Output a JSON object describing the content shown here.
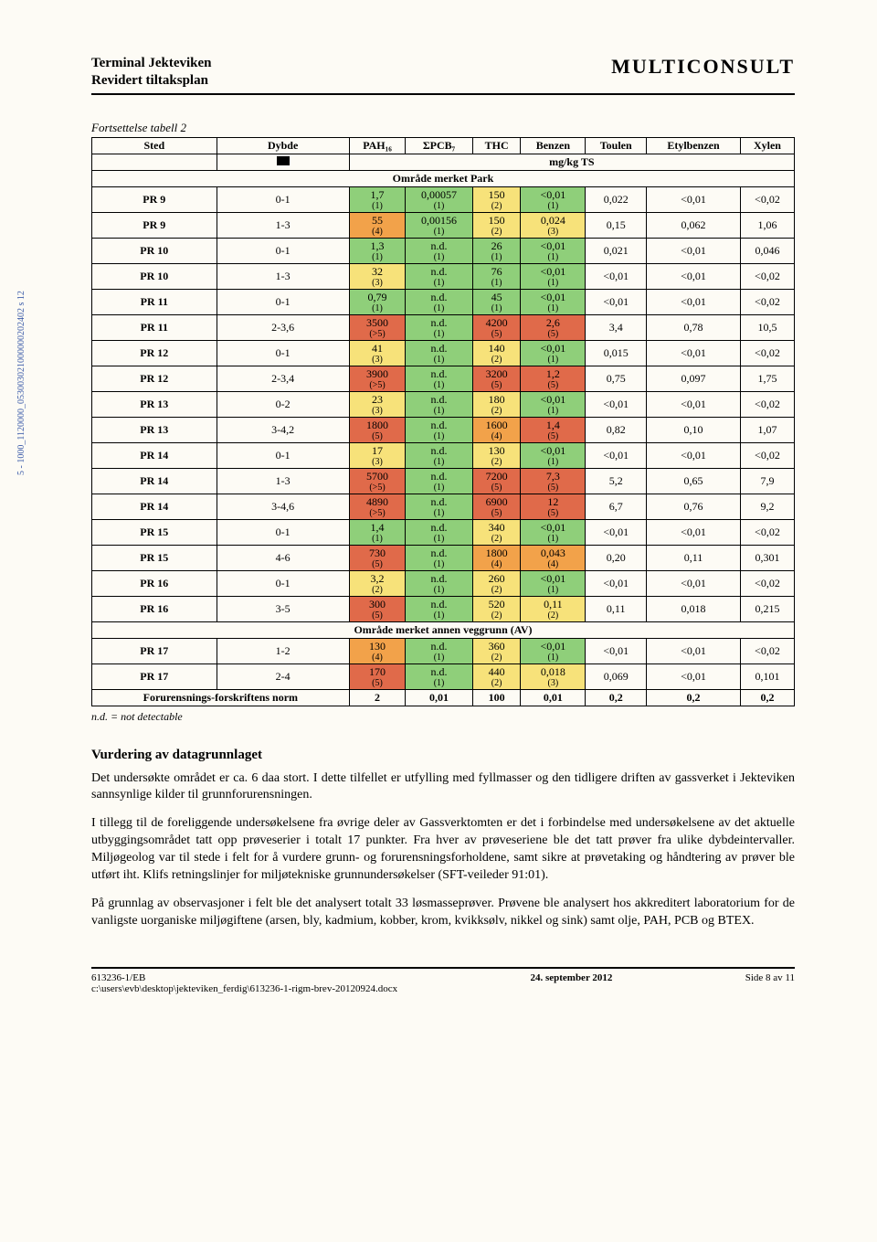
{
  "header": {
    "title_line1": "Terminal Jekteviken",
    "title_line2": "Revidert tiltaksplan",
    "company": "MULTICONSULT"
  },
  "table": {
    "caption": "Fortsettelse tabell 2",
    "columns": [
      "Sted",
      "Dybde",
      "PAH₁₆",
      "ΣPCB₇",
      "THC",
      "Benzen",
      "Toulen",
      "Etylbenzen",
      "Xylen"
    ],
    "unit_row_label": "mg/kg TS",
    "sections": [
      {
        "title": "Område merket Park",
        "rows": [
          {
            "sted": "PR 9",
            "dybde": "0-1",
            "cells": [
              {
                "v": "1,7",
                "s": "(1)",
                "c": "c-green"
              },
              {
                "v": "0,00057",
                "s": "(1)",
                "c": "c-green"
              },
              {
                "v": "150",
                "s": "(2)",
                "c": "c-yellow"
              },
              {
                "v": "<0,01",
                "s": "(1)",
                "c": "c-green"
              },
              {
                "v": "0,022",
                "s": "",
                "c": ""
              },
              {
                "v": "<0,01",
                "s": "",
                "c": ""
              },
              {
                "v": "<0,02",
                "s": "",
                "c": ""
              }
            ]
          },
          {
            "sted": "PR 9",
            "dybde": "1-3",
            "cells": [
              {
                "v": "55",
                "s": "(4)",
                "c": "c-orange"
              },
              {
                "v": "0,00156",
                "s": "(1)",
                "c": "c-green"
              },
              {
                "v": "150",
                "s": "(2)",
                "c": "c-yellow"
              },
              {
                "v": "0,024",
                "s": "(3)",
                "c": "c-yellow"
              },
              {
                "v": "0,15",
                "s": "",
                "c": ""
              },
              {
                "v": "0,062",
                "s": "",
                "c": ""
              },
              {
                "v": "1,06",
                "s": "",
                "c": ""
              }
            ]
          },
          {
            "sted": "PR 10",
            "dybde": "0-1",
            "cells": [
              {
                "v": "1,3",
                "s": "(1)",
                "c": "c-green"
              },
              {
                "v": "n.d.",
                "s": "(1)",
                "c": "c-green"
              },
              {
                "v": "26",
                "s": "(1)",
                "c": "c-green"
              },
              {
                "v": "<0,01",
                "s": "(1)",
                "c": "c-green"
              },
              {
                "v": "0,021",
                "s": "",
                "c": ""
              },
              {
                "v": "<0,01",
                "s": "",
                "c": ""
              },
              {
                "v": "0,046",
                "s": "",
                "c": ""
              }
            ]
          },
          {
            "sted": "PR 10",
            "dybde": "1-3",
            "cells": [
              {
                "v": "32",
                "s": "(3)",
                "c": "c-yellow"
              },
              {
                "v": "n.d.",
                "s": "(1)",
                "c": "c-green"
              },
              {
                "v": "76",
                "s": "(1)",
                "c": "c-green"
              },
              {
                "v": "<0,01",
                "s": "(1)",
                "c": "c-green"
              },
              {
                "v": "<0,01",
                "s": "",
                "c": ""
              },
              {
                "v": "<0,01",
                "s": "",
                "c": ""
              },
              {
                "v": "<0,02",
                "s": "",
                "c": ""
              }
            ]
          },
          {
            "sted": "PR 11",
            "dybde": "0-1",
            "cells": [
              {
                "v": "0,79",
                "s": "(1)",
                "c": "c-green"
              },
              {
                "v": "n.d.",
                "s": "(1)",
                "c": "c-green"
              },
              {
                "v": "45",
                "s": "(1)",
                "c": "c-green"
              },
              {
                "v": "<0,01",
                "s": "(1)",
                "c": "c-green"
              },
              {
                "v": "<0,01",
                "s": "",
                "c": ""
              },
              {
                "v": "<0,01",
                "s": "",
                "c": ""
              },
              {
                "v": "<0,02",
                "s": "",
                "c": ""
              }
            ]
          },
          {
            "sted": "PR 11",
            "dybde": "2-3,6",
            "cells": [
              {
                "v": "3500",
                "s": "(>5)",
                "c": "c-red"
              },
              {
                "v": "n.d.",
                "s": "(1)",
                "c": "c-green"
              },
              {
                "v": "4200",
                "s": "(5)",
                "c": "c-red"
              },
              {
                "v": "2,6",
                "s": "(5)",
                "c": "c-red"
              },
              {
                "v": "3,4",
                "s": "",
                "c": ""
              },
              {
                "v": "0,78",
                "s": "",
                "c": ""
              },
              {
                "v": "10,5",
                "s": "",
                "c": ""
              }
            ]
          },
          {
            "sted": "PR 12",
            "dybde": "0-1",
            "cells": [
              {
                "v": "41",
                "s": "(3)",
                "c": "c-yellow"
              },
              {
                "v": "n.d.",
                "s": "(1)",
                "c": "c-green"
              },
              {
                "v": "140",
                "s": "(2)",
                "c": "c-yellow"
              },
              {
                "v": "<0,01",
                "s": "(1)",
                "c": "c-green"
              },
              {
                "v": "0,015",
                "s": "",
                "c": ""
              },
              {
                "v": "<0,01",
                "s": "",
                "c": ""
              },
              {
                "v": "<0,02",
                "s": "",
                "c": ""
              }
            ]
          },
          {
            "sted": "PR 12",
            "dybde": "2-3,4",
            "cells": [
              {
                "v": "3900",
                "s": "(>5)",
                "c": "c-red"
              },
              {
                "v": "n.d.",
                "s": "(1)",
                "c": "c-green"
              },
              {
                "v": "3200",
                "s": "(5)",
                "c": "c-red"
              },
              {
                "v": "1,2",
                "s": "(5)",
                "c": "c-red"
              },
              {
                "v": "0,75",
                "s": "",
                "c": ""
              },
              {
                "v": "0,097",
                "s": "",
                "c": ""
              },
              {
                "v": "1,75",
                "s": "",
                "c": ""
              }
            ]
          },
          {
            "sted": "PR 13",
            "dybde": "0-2",
            "cells": [
              {
                "v": "23",
                "s": "(3)",
                "c": "c-yellow"
              },
              {
                "v": "n.d.",
                "s": "(1)",
                "c": "c-green"
              },
              {
                "v": "180",
                "s": "(2)",
                "c": "c-yellow"
              },
              {
                "v": "<0,01",
                "s": "(1)",
                "c": "c-green"
              },
              {
                "v": "<0,01",
                "s": "",
                "c": ""
              },
              {
                "v": "<0,01",
                "s": "",
                "c": ""
              },
              {
                "v": "<0,02",
                "s": "",
                "c": ""
              }
            ]
          },
          {
            "sted": "PR 13",
            "dybde": "3-4,2",
            "cells": [
              {
                "v": "1800",
                "s": "(5)",
                "c": "c-red"
              },
              {
                "v": "n.d.",
                "s": "(1)",
                "c": "c-green"
              },
              {
                "v": "1600",
                "s": "(4)",
                "c": "c-orange"
              },
              {
                "v": "1,4",
                "s": "(5)",
                "c": "c-red"
              },
              {
                "v": "0,82",
                "s": "",
                "c": ""
              },
              {
                "v": "0,10",
                "s": "",
                "c": ""
              },
              {
                "v": "1,07",
                "s": "",
                "c": ""
              }
            ]
          },
          {
            "sted": "PR 14",
            "dybde": "0-1",
            "cells": [
              {
                "v": "17",
                "s": "(3)",
                "c": "c-yellow"
              },
              {
                "v": "n.d.",
                "s": "(1)",
                "c": "c-green"
              },
              {
                "v": "130",
                "s": "(2)",
                "c": "c-yellow"
              },
              {
                "v": "<0,01",
                "s": "(1)",
                "c": "c-green"
              },
              {
                "v": "<0,01",
                "s": "",
                "c": ""
              },
              {
                "v": "<0,01",
                "s": "",
                "c": ""
              },
              {
                "v": "<0,02",
                "s": "",
                "c": ""
              }
            ]
          },
          {
            "sted": "PR 14",
            "dybde": "1-3",
            "cells": [
              {
                "v": "5700",
                "s": "(>5)",
                "c": "c-red"
              },
              {
                "v": "n.d.",
                "s": "(1)",
                "c": "c-green"
              },
              {
                "v": "7200",
                "s": "(5)",
                "c": "c-red"
              },
              {
                "v": "7,3",
                "s": "(5)",
                "c": "c-red"
              },
              {
                "v": "5,2",
                "s": "",
                "c": ""
              },
              {
                "v": "0,65",
                "s": "",
                "c": ""
              },
              {
                "v": "7,9",
                "s": "",
                "c": ""
              }
            ]
          },
          {
            "sted": "PR 14",
            "dybde": "3-4,6",
            "cells": [
              {
                "v": "4890",
                "s": "(>5)",
                "c": "c-red"
              },
              {
                "v": "n.d.",
                "s": "(1)",
                "c": "c-green"
              },
              {
                "v": "6900",
                "s": "(5)",
                "c": "c-red"
              },
              {
                "v": "12",
                "s": "(5)",
                "c": "c-red"
              },
              {
                "v": "6,7",
                "s": "",
                "c": ""
              },
              {
                "v": "0,76",
                "s": "",
                "c": ""
              },
              {
                "v": "9,2",
                "s": "",
                "c": ""
              }
            ]
          },
          {
            "sted": "PR 15",
            "dybde": "0-1",
            "cells": [
              {
                "v": "1,4",
                "s": "(1)",
                "c": "c-green"
              },
              {
                "v": "n.d.",
                "s": "(1)",
                "c": "c-green"
              },
              {
                "v": "340",
                "s": "(2)",
                "c": "c-yellow"
              },
              {
                "v": "<0,01",
                "s": "(1)",
                "c": "c-green"
              },
              {
                "v": "<0,01",
                "s": "",
                "c": ""
              },
              {
                "v": "<0,01",
                "s": "",
                "c": ""
              },
              {
                "v": "<0,02",
                "s": "",
                "c": ""
              }
            ]
          },
          {
            "sted": "PR 15",
            "dybde": "4-6",
            "cells": [
              {
                "v": "730",
                "s": "(5)",
                "c": "c-red"
              },
              {
                "v": "n.d.",
                "s": "(1)",
                "c": "c-green"
              },
              {
                "v": "1800",
                "s": "(4)",
                "c": "c-orange"
              },
              {
                "v": "0,043",
                "s": "(4)",
                "c": "c-orange"
              },
              {
                "v": "0,20",
                "s": "",
                "c": ""
              },
              {
                "v": "0,11",
                "s": "",
                "c": ""
              },
              {
                "v": "0,301",
                "s": "",
                "c": ""
              }
            ]
          },
          {
            "sted": "PR 16",
            "dybde": "0-1",
            "cells": [
              {
                "v": "3,2",
                "s": "(2)",
                "c": "c-yellow"
              },
              {
                "v": "n.d.",
                "s": "(1)",
                "c": "c-green"
              },
              {
                "v": "260",
                "s": "(2)",
                "c": "c-yellow"
              },
              {
                "v": "<0,01",
                "s": "(1)",
                "c": "c-green"
              },
              {
                "v": "<0,01",
                "s": "",
                "c": ""
              },
              {
                "v": "<0,01",
                "s": "",
                "c": ""
              },
              {
                "v": "<0,02",
                "s": "",
                "c": ""
              }
            ]
          },
          {
            "sted": "PR 16",
            "dybde": "3-5",
            "cells": [
              {
                "v": "300",
                "s": "(5)",
                "c": "c-red"
              },
              {
                "v": "n.d.",
                "s": "(1)",
                "c": "c-green"
              },
              {
                "v": "520",
                "s": "(2)",
                "c": "c-yellow"
              },
              {
                "v": "0,11",
                "s": "(2)",
                "c": "c-yellow"
              },
              {
                "v": "0,11",
                "s": "",
                "c": ""
              },
              {
                "v": "0,018",
                "s": "",
                "c": ""
              },
              {
                "v": "0,215",
                "s": "",
                "c": ""
              }
            ]
          }
        ]
      },
      {
        "title": "Område merket annen veggrunn (AV)",
        "rows": [
          {
            "sted": "PR 17",
            "dybde": "1-2",
            "cells": [
              {
                "v": "130",
                "s": "(4)",
                "c": "c-orange"
              },
              {
                "v": "n.d.",
                "s": "(1)",
                "c": "c-green"
              },
              {
                "v": "360",
                "s": "(2)",
                "c": "c-yellow"
              },
              {
                "v": "<0,01",
                "s": "(1)",
                "c": "c-green"
              },
              {
                "v": "<0,01",
                "s": "",
                "c": ""
              },
              {
                "v": "<0,01",
                "s": "",
                "c": ""
              },
              {
                "v": "<0,02",
                "s": "",
                "c": ""
              }
            ]
          },
          {
            "sted": "PR 17",
            "dybde": "2-4",
            "cells": [
              {
                "v": "170",
                "s": "(5)",
                "c": "c-red"
              },
              {
                "v": "n.d.",
                "s": "(1)",
                "c": "c-green"
              },
              {
                "v": "440",
                "s": "(2)",
                "c": "c-yellow"
              },
              {
                "v": "0,018",
                "s": "(3)",
                "c": "c-yellow"
              },
              {
                "v": "0,069",
                "s": "",
                "c": ""
              },
              {
                "v": "<0,01",
                "s": "",
                "c": ""
              },
              {
                "v": "0,101",
                "s": "",
                "c": ""
              }
            ]
          }
        ]
      }
    ],
    "norm_row": {
      "label": "Forurensnings-forskriftens norm",
      "values": [
        "2",
        "0,01",
        "100",
        "0,01",
        "0,2",
        "0,2",
        "0,2"
      ]
    },
    "footnote": "n.d. = not detectable"
  },
  "section_heading": "Vurdering av datagrunnlaget",
  "paragraphs": [
    "Det undersøkte området er ca. 6 daa stort. I dette tilfellet er utfylling med fyllmasser og den tidligere driften av gassverket i Jekteviken sannsynlige kilder til grunnforurensningen.",
    "I tillegg til de foreliggende undersøkelsene fra øvrige deler av Gassverktomten er det i forbindelse med undersøkelsene av det aktuelle utbyggingsområdet tatt opp prøveserier i totalt 17 punkter. Fra hver av prøveseriene ble det tatt prøver fra ulike dybdeintervaller. Miljøgeolog var til stede i felt for å vurdere grunn- og forurensningsforholdene, samt sikre at prøvetaking og håndtering av prøver ble utført iht. Klifs retningslinjer for miljøtekniske grunnundersøkelser (SFT-veileder 91:01).",
    "På grunnlag av observasjoner i felt ble det analysert totalt 33 løsmasseprøver. Prøvene ble analysert hos akkreditert laboratorium for de vanligste uorganiske miljøgiftene (arsen, bly, kadmium, kobber, krom, kvikksølv, nikkel og sink) samt olje, PAH, PCB og BTEX."
  ],
  "footer": {
    "left_line1": "613236-1/EB",
    "left_line2": "c:\\users\\evb\\desktop\\jekteviken_ferdig\\613236-1-rigm-brev-20120924.docx",
    "mid": "24. september 2012",
    "right": "Side 8 av 11"
  },
  "side_text": "5 - 1000_1120000_053003021000000202402 s    12"
}
